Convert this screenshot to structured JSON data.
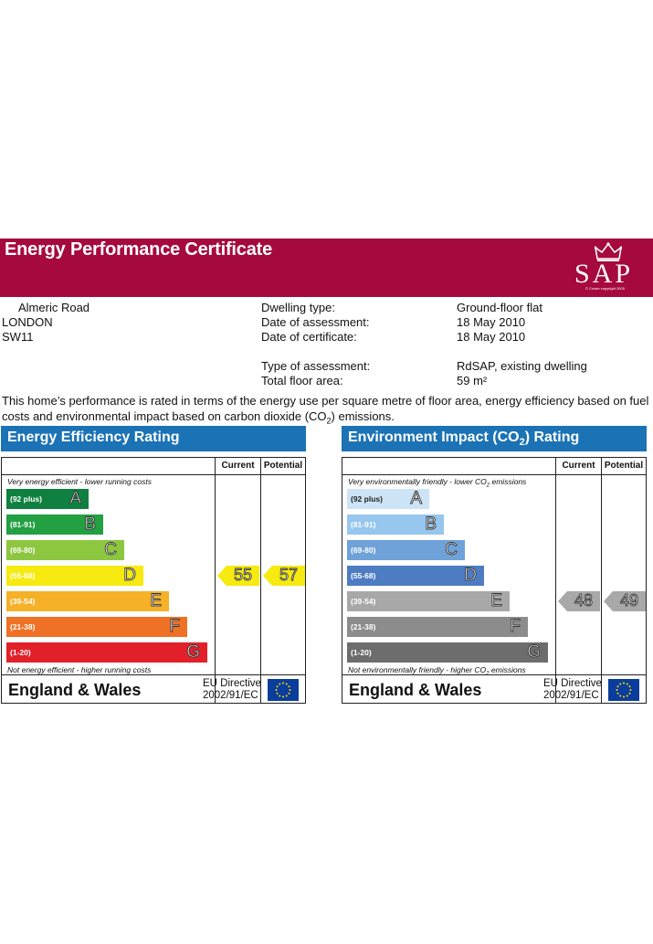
{
  "header": {
    "title": "Energy Performance Certificate",
    "logo_text": "SAP",
    "logo_copyright": "© Crown copyright 2005"
  },
  "address": {
    "line1": "Almeric Road",
    "line2": "LONDON",
    "line3": "SW11"
  },
  "details": [
    {
      "label": "Dwelling type:",
      "value": "Ground-floor flat"
    },
    {
      "label": "Date of assessment:",
      "value": "18 May 2010"
    },
    {
      "label": "Date of certificate:",
      "value": "18 May 2010"
    },
    {
      "label": "Type of assessment:",
      "value": "RdSAP, existing dwelling"
    },
    {
      "label": "Total floor area:",
      "value": "59 m²"
    }
  ],
  "intro": {
    "pre": "This home’s performance is rated in terms of the energy use per square metre of floor area, energy efficiency based on fuel costs and environmental impact based on carbon dioxide (CO",
    "sub": "2",
    "post": ") emissions."
  },
  "energy": {
    "title": "Energy Efficiency Rating",
    "col_current": "Current",
    "col_potential": "Potential",
    "top_note": "Very energy efficient - lower running costs",
    "bottom_note": "Not energy efficient - higher running costs",
    "bands": [
      {
        "range": "(92 plus)",
        "letter": "A",
        "color": "#0f8040"
      },
      {
        "range": "(81-91)",
        "letter": "B",
        "color": "#22a042"
      },
      {
        "range": "(69-80)",
        "letter": "C",
        "color": "#8dc63f"
      },
      {
        "range": "(55-68)",
        "letter": "D",
        "color": "#f6ea10"
      },
      {
        "range": "(39-54)",
        "letter": "E",
        "color": "#f6b128"
      },
      {
        "range": "(21-38)",
        "letter": "F",
        "color": "#ef7126"
      },
      {
        "range": "(1-20)",
        "letter": "G",
        "color": "#e2202a"
      }
    ],
    "current": "55",
    "potential": "57",
    "current_color": "#f6ea10",
    "potential_color": "#f6ea10",
    "footer": "England & Wales",
    "directive_1": "EU Directive",
    "directive_2": "2002/91/EC"
  },
  "environment": {
    "title_pre": "Environment Impact (CO",
    "title_sub": "2",
    "title_post": ") Rating",
    "col_current": "Current",
    "col_potential": "Potential",
    "top_note_pre": "Very environmentally friendly - lower CO",
    "top_note_sub": "2",
    "top_note_post": " emissions",
    "bottom_note_pre": "Not environmentally friendly - higher CO",
    "bottom_note_sub": "2",
    "bottom_note_post": " emissions",
    "bands": [
      {
        "range": "(92 plus)",
        "letter": "A",
        "color": "#cde4f6"
      },
      {
        "range": "(81-91)",
        "letter": "B",
        "color": "#97c6ee"
      },
      {
        "range": "(69-80)",
        "letter": "C",
        "color": "#6fa2d9"
      },
      {
        "range": "(55-68)",
        "letter": "D",
        "color": "#4e7cc2"
      },
      {
        "range": "(39-54)",
        "letter": "E",
        "color": "#a8a8a8"
      },
      {
        "range": "(21-38)",
        "letter": "F",
        "color": "#8c8c8c"
      },
      {
        "range": "(1-20)",
        "letter": "G",
        "color": "#6d6d6d"
      }
    ],
    "current": "48",
    "potential": "49",
    "current_color": "#a8a8a8",
    "potential_color": "#a8a8a8",
    "footer": "England & Wales",
    "directive_1": "EU Directive",
    "directive_2": "2002/91/EC"
  }
}
